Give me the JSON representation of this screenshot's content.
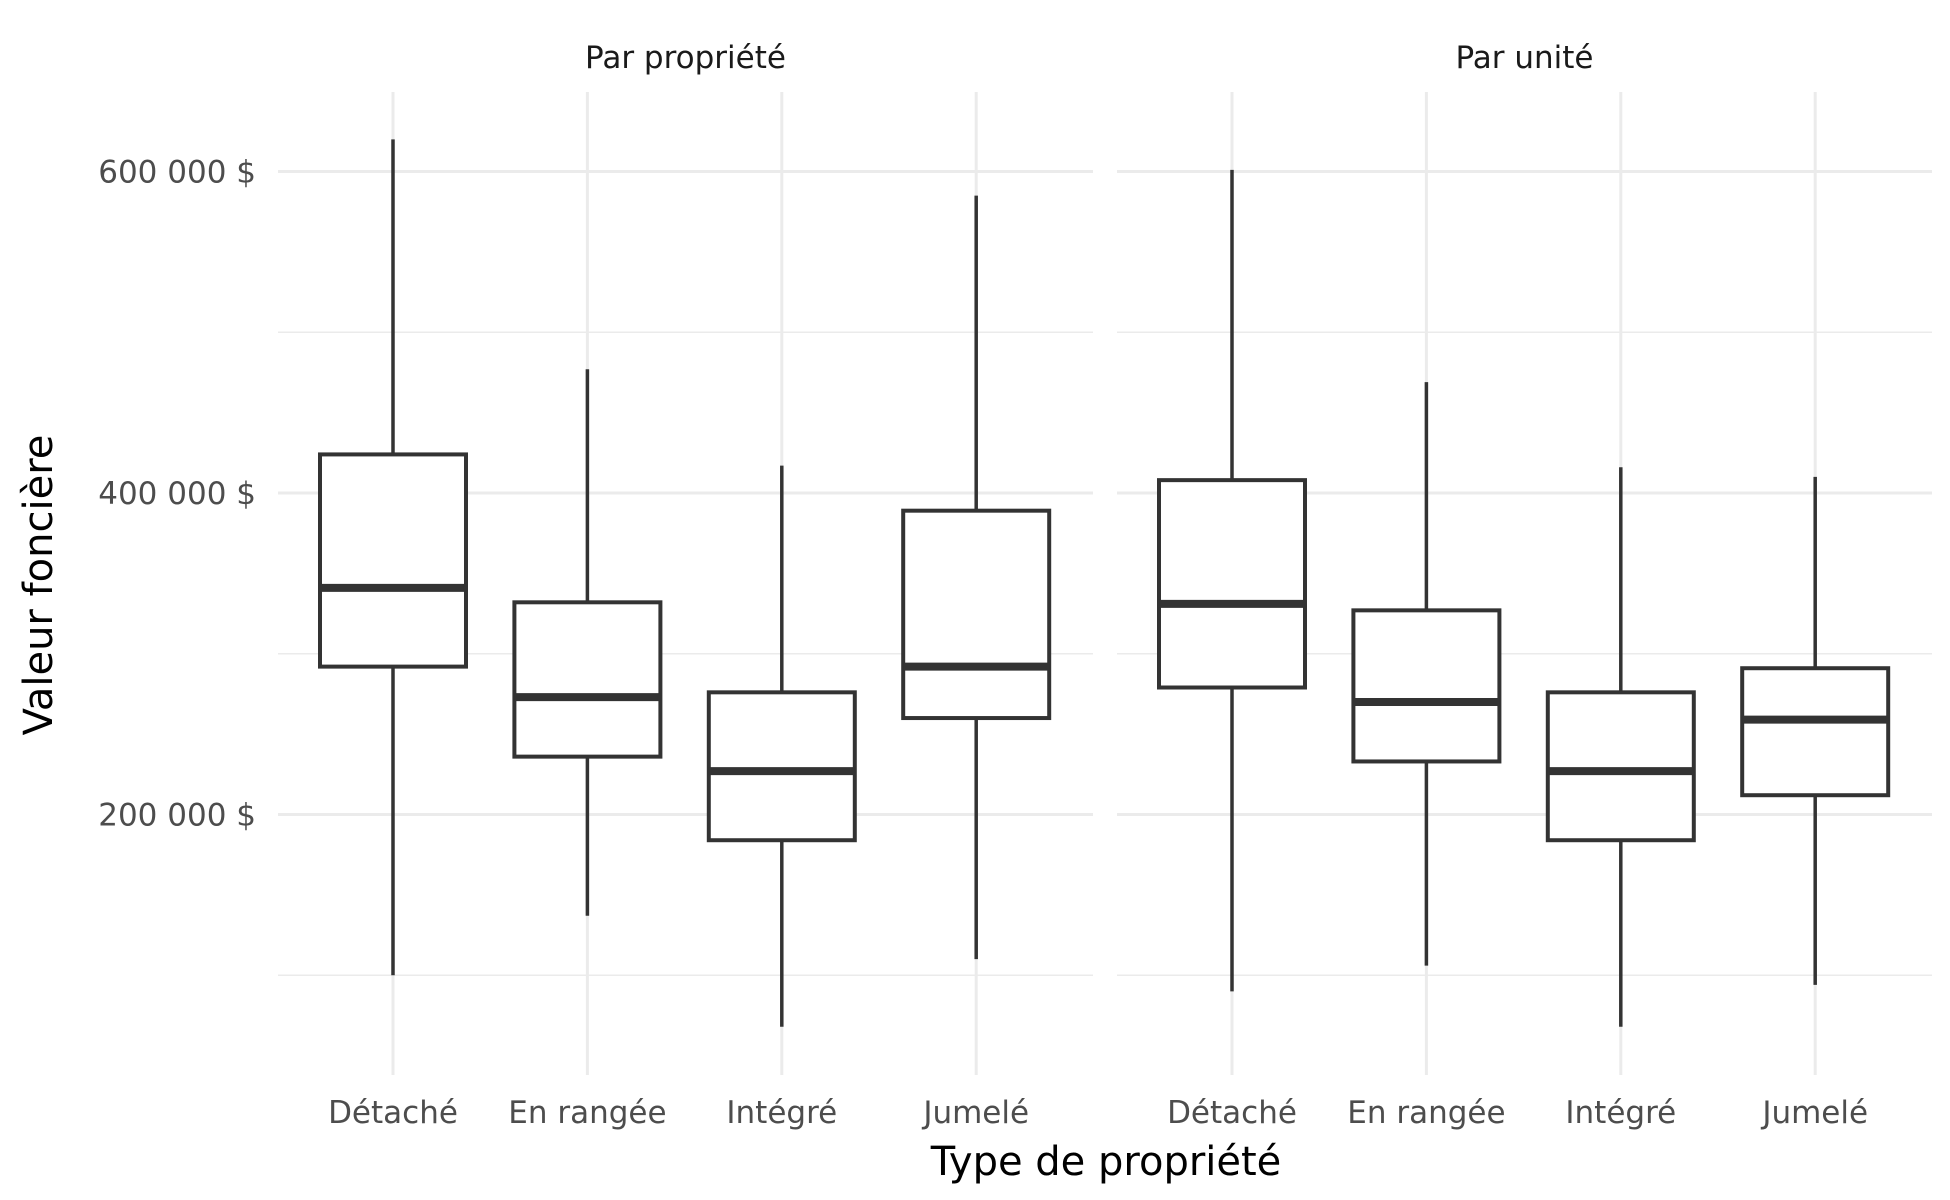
{
  "chart_data": {
    "type": "boxplot",
    "xlabel": "Type de propriété",
    "ylabel": "Valeur foncière",
    "ylim": [
      45000,
      650000
    ],
    "y_ticks": [
      200000,
      400000,
      600000
    ],
    "y_tick_labels": [
      "200 000 $",
      "400 000 $",
      "600 000 $"
    ],
    "grid": true,
    "categories": [
      "Détaché",
      "En rangée",
      "Intégré",
      "Jumelé"
    ],
    "panels": [
      {
        "title": "Par propriété",
        "boxes": [
          {
            "category": "Détaché",
            "min": 100000,
            "q1": 292000,
            "median": 341000,
            "q3": 424000,
            "max": 620000
          },
          {
            "category": "En rangée",
            "min": 137000,
            "q1": 236000,
            "median": 273000,
            "q3": 332000,
            "max": 477000
          },
          {
            "category": "Intégré",
            "min": 68000,
            "q1": 184000,
            "median": 227000,
            "q3": 276000,
            "max": 417000
          },
          {
            "category": "Jumelé",
            "min": 110000,
            "q1": 260000,
            "median": 292000,
            "q3": 389000,
            "max": 585000
          }
        ]
      },
      {
        "title": "Par unité",
        "boxes": [
          {
            "category": "Détaché",
            "min": 90000,
            "q1": 279000,
            "median": 331000,
            "q3": 408000,
            "max": 601000
          },
          {
            "category": "En rangée",
            "min": 106000,
            "q1": 233000,
            "median": 270000,
            "q3": 327000,
            "max": 469000
          },
          {
            "category": "Intégré",
            "min": 68000,
            "q1": 184000,
            "median": 227000,
            "q3": 276000,
            "max": 416000
          },
          {
            "category": "Jumelé",
            "min": 94000,
            "q1": 212000,
            "median": 259000,
            "q3": 291000,
            "max": 410000
          }
        ]
      }
    ]
  }
}
